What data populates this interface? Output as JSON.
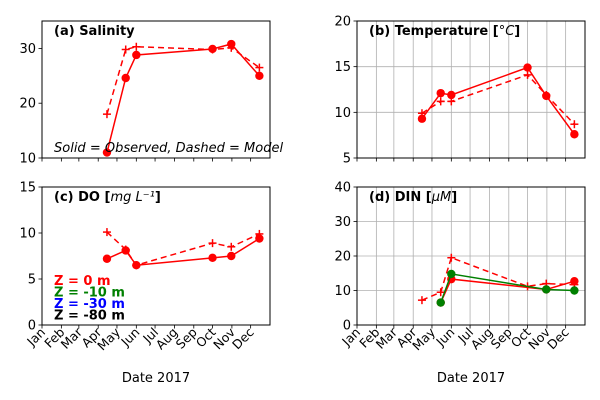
{
  "chart_data": [
    {
      "id": "salinity",
      "type": "line",
      "title_prefix": "(a) ",
      "title": "Salinity",
      "ylim": [
        10,
        35
      ],
      "yticks": [
        10,
        20,
        30
      ],
      "annotation": "Solid = Observed, Dashed = Model",
      "show_xticklabels": false,
      "grid": false,
      "series": [
        {
          "depth": "0 m",
          "color": "#ff0000",
          "style": "observed",
          "marker": "circle",
          "x": [
            "2017-04-15",
            "2017-05-15",
            "2017-06-01",
            "2017-10-01",
            "2017-10-31",
            "2017-12-15"
          ],
          "values": [
            11,
            24.6,
            28.8,
            29.9,
            30.8,
            25
          ]
        },
        {
          "depth": "0 m",
          "color": "#ff0000",
          "style": "model",
          "marker": "plus",
          "x": [
            "2017-04-15",
            "2017-05-15",
            "2017-06-01",
            "2017-10-01",
            "2017-10-31",
            "2017-12-15"
          ],
          "values": [
            18,
            29.8,
            30.3,
            29.8,
            30.1,
            26.5
          ]
        }
      ]
    },
    {
      "id": "temperature",
      "type": "line",
      "title_prefix": "(b) ",
      "title": "Temperature [°C]",
      "ylim": [
        5,
        20
      ],
      "yticks": [
        5,
        10,
        15,
        20
      ],
      "show_xticklabels": false,
      "grid": true,
      "series": [
        {
          "depth": "0 m",
          "color": "#ff0000",
          "style": "observed",
          "marker": "circle",
          "x": [
            "2017-04-15",
            "2017-05-15",
            "2017-06-01",
            "2017-10-01",
            "2017-10-31",
            "2017-12-15"
          ],
          "values": [
            9.3,
            12.1,
            11.9,
            14.9,
            11.8,
            7.6
          ]
        },
        {
          "depth": "0 m",
          "color": "#ff0000",
          "style": "model",
          "marker": "plus",
          "x": [
            "2017-04-15",
            "2017-05-15",
            "2017-06-01",
            "2017-10-01",
            "2017-10-31",
            "2017-12-15"
          ],
          "values": [
            9.9,
            11.2,
            11.2,
            14.1,
            11.9,
            8.7
          ]
        }
      ]
    },
    {
      "id": "do",
      "type": "line",
      "title_prefix": "(c) ",
      "title": "DO [mg L⁻¹]",
      "ylim": [
        0,
        15
      ],
      "yticks": [
        0,
        5,
        10,
        15
      ],
      "show_xticklabels": true,
      "grid": false,
      "xlabel": "Date 2017",
      "legend": [
        {
          "label": "Z =   0 m",
          "color": "#ff0000"
        },
        {
          "label": "Z =  -10 m",
          "color": "#008000"
        },
        {
          "label": "Z =  -30 m",
          "color": "#0000ff"
        },
        {
          "label": "Z =  -80 m",
          "color": "#000000"
        }
      ],
      "series": [
        {
          "depth": "0 m",
          "color": "#ff0000",
          "style": "observed",
          "marker": "circle",
          "x": [
            "2017-04-15",
            "2017-05-15",
            "2017-06-01",
            "2017-10-01",
            "2017-10-31",
            "2017-12-15"
          ],
          "values": [
            7.2,
            8.1,
            6.5,
            7.3,
            7.5,
            9.4
          ]
        },
        {
          "depth": "0 m",
          "color": "#ff0000",
          "style": "model",
          "marker": "plus",
          "x": [
            "2017-04-15",
            "2017-05-15",
            "2017-06-01",
            "2017-10-01",
            "2017-10-31",
            "2017-12-15"
          ],
          "values": [
            10.1,
            8.2,
            6.5,
            8.9,
            8.5,
            9.9
          ]
        }
      ]
    },
    {
      "id": "din",
      "type": "line",
      "title_prefix": "(d) ",
      "title": "DIN  [µM]",
      "ylim": [
        0,
        40
      ],
      "yticks": [
        0,
        10,
        20,
        30,
        40
      ],
      "show_xticklabels": true,
      "grid": true,
      "xlabel": "Date 2017",
      "series": [
        {
          "depth": "0 m",
          "color": "#ff0000",
          "style": "observed",
          "marker": "circle",
          "x": [
            "2017-05-15",
            "2017-06-01",
            "2017-10-31",
            "2017-12-15"
          ],
          "values": [
            6.5,
            13.3,
            10.3,
            12.7
          ]
        },
        {
          "depth": "0 m",
          "color": "#ff0000",
          "style": "model",
          "marker": "plus",
          "x": [
            "2017-04-15",
            "2017-05-15",
            "2017-06-01",
            "2017-10-01",
            "2017-10-31",
            "2017-12-15"
          ],
          "values": [
            7.2,
            9.5,
            19.5,
            11.2,
            12,
            11.7
          ]
        },
        {
          "depth": "-10 m",
          "color": "#008000",
          "style": "observed",
          "marker": "circle",
          "x": [
            "2017-05-15",
            "2017-06-01",
            "2017-10-31",
            "2017-12-15"
          ],
          "values": [
            6.5,
            14.8,
            10.3,
            10
          ]
        }
      ]
    }
  ],
  "months": [
    "Jan",
    "Feb",
    "Mar",
    "Apr",
    "May",
    "Jun",
    "Jul",
    "Aug",
    "Sep",
    "Oct",
    "Nov",
    "Dec"
  ],
  "marker_colors": {
    "edge": "#ff0000"
  }
}
